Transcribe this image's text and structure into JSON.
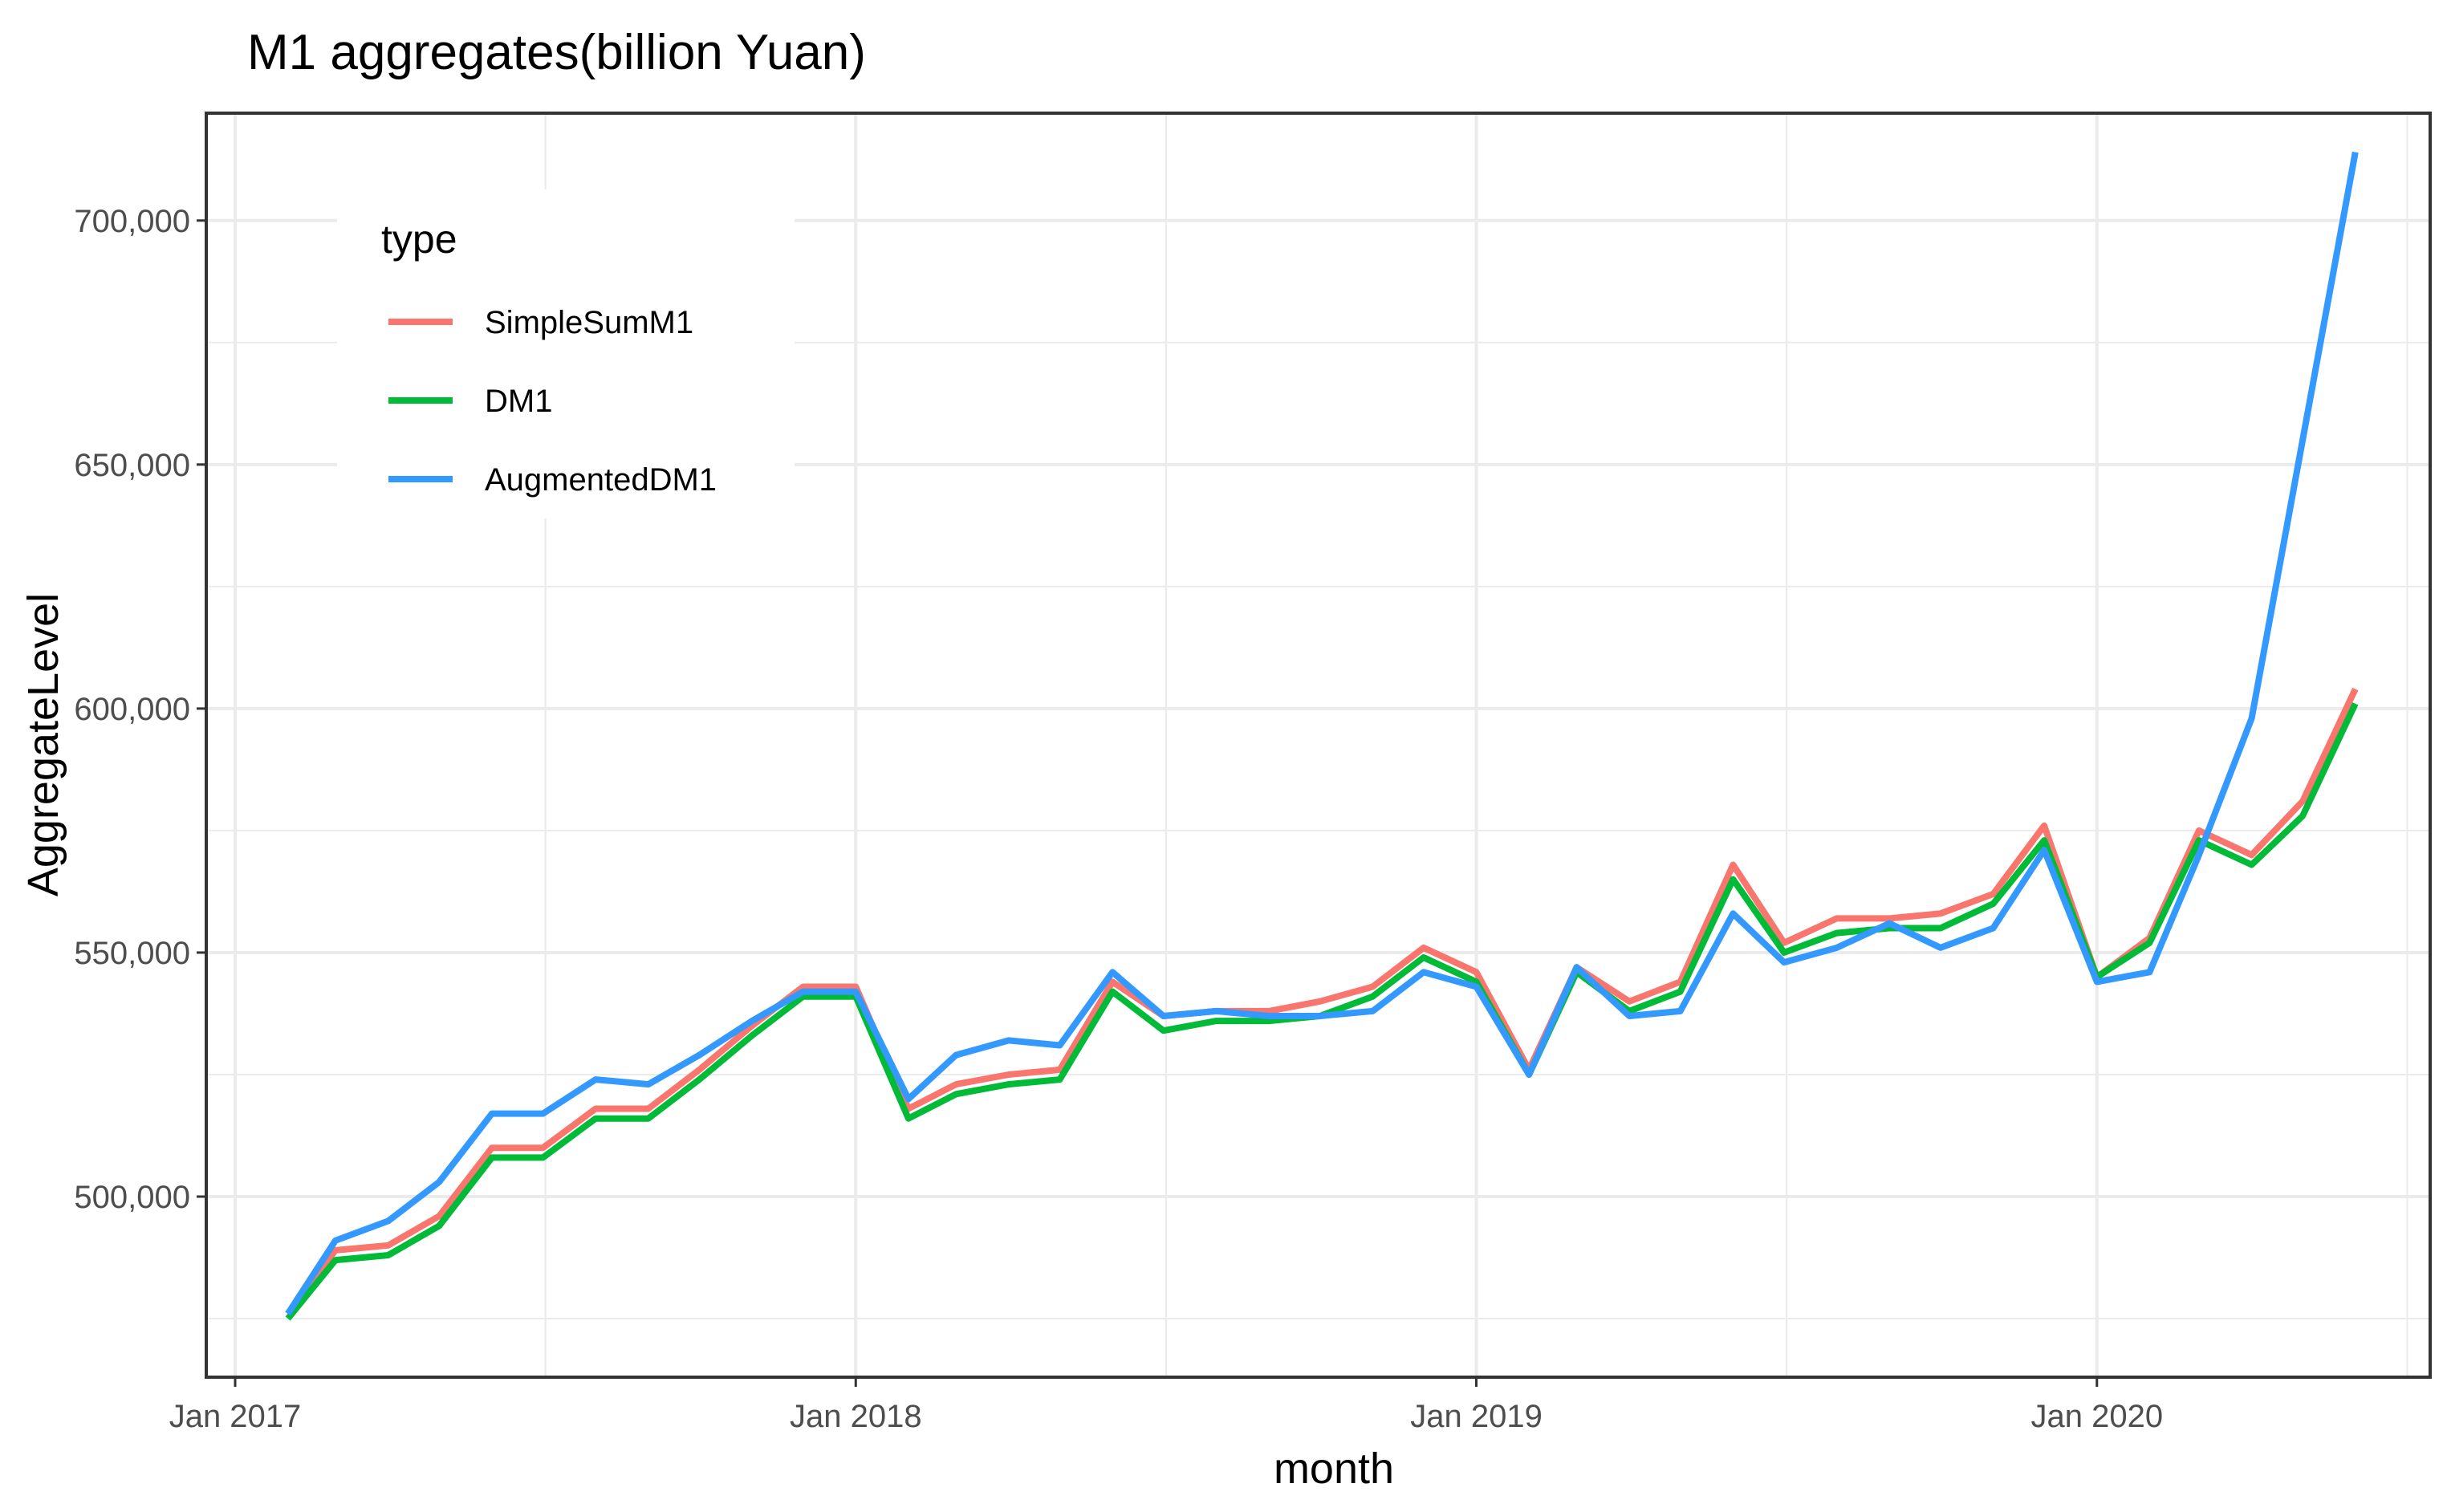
{
  "chart_data": {
    "type": "line",
    "title": "M1 aggregates(billion Yuan)",
    "xlabel": "month",
    "ylabel": "AggregateLevel",
    "legend_title": "type",
    "legend_position": "top-left (inside)",
    "grid": true,
    "xlim": [
      "2016-12-15",
      "2020-07-15"
    ],
    "ylim": [
      463000,
      722000
    ],
    "x_ticks": [
      {
        "date": "2017-01-01",
        "label": "Jan 2017"
      },
      {
        "date": "2018-01-01",
        "label": "Jan 2018"
      },
      {
        "date": "2019-01-01",
        "label": "Jan 2019"
      },
      {
        "date": "2020-01-01",
        "label": "Jan 2020"
      }
    ],
    "y_ticks": [
      {
        "value": 500000,
        "label": "500,000"
      },
      {
        "value": 550000,
        "label": "550,000"
      },
      {
        "value": 600000,
        "label": "600,000"
      },
      {
        "value": 650000,
        "label": "650,000"
      },
      {
        "value": 700000,
        "label": "700,000"
      }
    ],
    "x": [
      "2017-02",
      "2017-03",
      "2017-04",
      "2017-05",
      "2017-06",
      "2017-07",
      "2017-08",
      "2017-09",
      "2017-10",
      "2017-11",
      "2017-12",
      "2018-01",
      "2018-02",
      "2018-03",
      "2018-04",
      "2018-05",
      "2018-06",
      "2018-07",
      "2018-08",
      "2018-09",
      "2018-10",
      "2018-11",
      "2018-12",
      "2019-01",
      "2019-02",
      "2019-03",
      "2019-04",
      "2019-05",
      "2019-06",
      "2019-07",
      "2019-08",
      "2019-09",
      "2019-10",
      "2019-11",
      "2019-12",
      "2020-01",
      "2020-02",
      "2020-03",
      "2020-04",
      "2020-05",
      "2020-06",
      "2020-07"
    ],
    "series": [
      {
        "name": "SimpleSumM1",
        "color": "#F8766D",
        "values": [
          476000,
          489000,
          490000,
          496000,
          510000,
          510000,
          518000,
          518000,
          526000,
          535000,
          543000,
          543000,
          518000,
          523000,
          525000,
          526000,
          544000,
          537000,
          538000,
          538000,
          540000,
          543000,
          551000,
          546000,
          526000,
          547000,
          540000,
          544000,
          568000,
          552000,
          557000,
          557000,
          558000,
          562000,
          576000,
          545000,
          553000,
          575000,
          570000,
          581000,
          604000,
          null
        ]
      },
      {
        "name": "DM1",
        "color": "#00BA38",
        "values": [
          475000,
          487000,
          488000,
          494000,
          508000,
          508000,
          516000,
          516000,
          524000,
          533000,
          541000,
          541000,
          516000,
          521000,
          523000,
          524000,
          542000,
          534000,
          536000,
          536000,
          537000,
          541000,
          549000,
          544000,
          525000,
          546000,
          538000,
          542000,
          565000,
          550000,
          554000,
          555000,
          555000,
          560000,
          573000,
          545000,
          552000,
          573000,
          568000,
          578000,
          601000,
          null
        ]
      },
      {
        "name": "AugmentedDM1",
        "color": "#3399FF",
        "values": [
          476000,
          491000,
          495000,
          503000,
          517000,
          517000,
          524000,
          523000,
          529000,
          536000,
          542000,
          542000,
          520000,
          529000,
          532000,
          531000,
          546000,
          537000,
          538000,
          537000,
          537000,
          538000,
          546000,
          543000,
          525000,
          547000,
          537000,
          538000,
          558000,
          548000,
          551000,
          556000,
          551000,
          555000,
          571000,
          544000,
          546000,
          570000,
          598000,
          655000,
          714000,
          null
        ]
      }
    ]
  }
}
